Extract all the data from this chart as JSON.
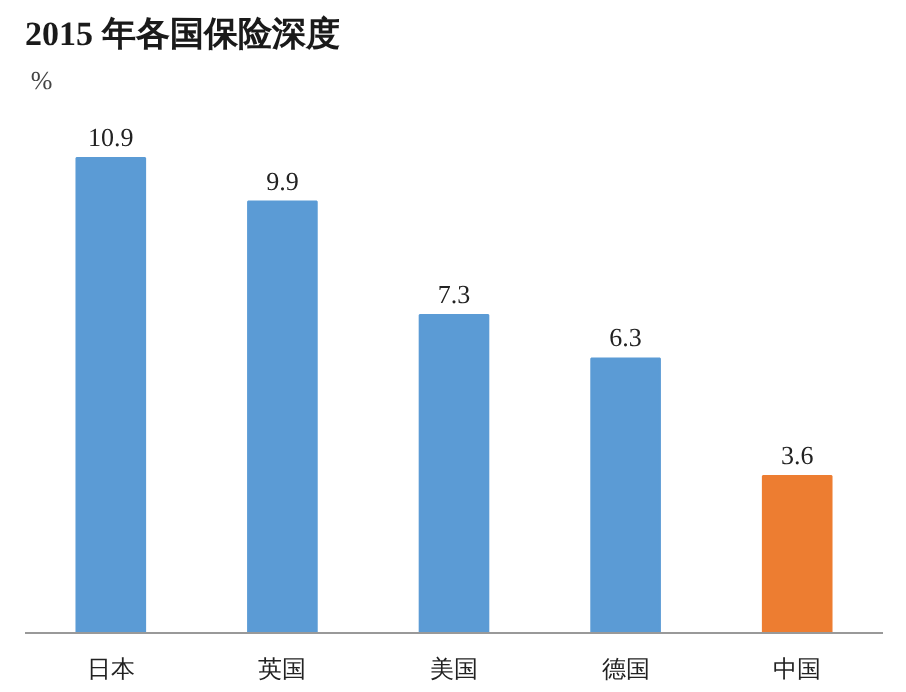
{
  "chart_data": {
    "type": "bar",
    "title": "2015 年各国保险深度",
    "ylabel": "%",
    "categories": [
      "日本",
      "英国",
      "美国",
      "德国",
      "中国"
    ],
    "values": [
      10.9,
      9.9,
      7.3,
      6.3,
      3.6
    ],
    "colors": [
      "#5b9bd5",
      "#5b9bd5",
      "#5b9bd5",
      "#5b9bd5",
      "#ed7d31"
    ],
    "data_labels": true,
    "grid": false
  }
}
